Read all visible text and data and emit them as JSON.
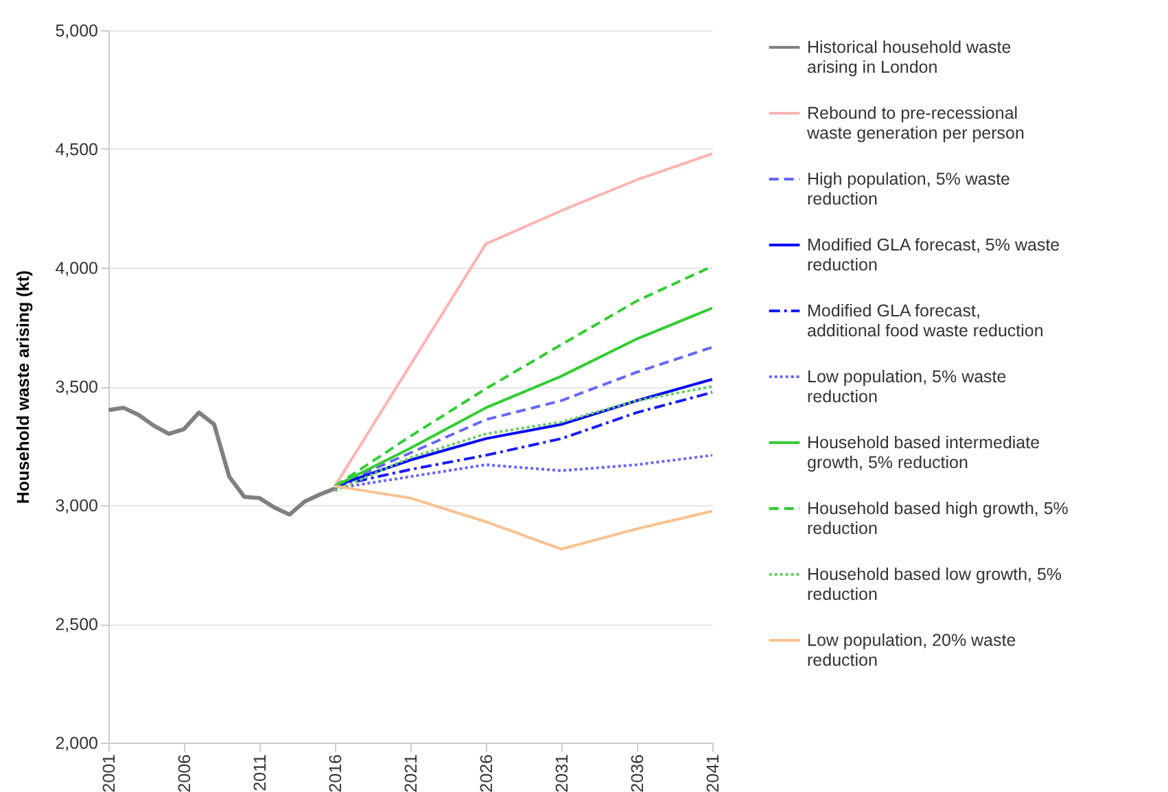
{
  "chart_data": {
    "type": "line",
    "ylabel": "Household waste arising (kt)",
    "xlim": [
      2001,
      2041
    ],
    "xticks": [
      2001,
      2006,
      2011,
      2016,
      2021,
      2026,
      2031,
      2036,
      2041
    ],
    "ylim": [
      2000,
      5000
    ],
    "yticks": [
      {
        "value": 2000,
        "label": "2,000"
      },
      {
        "value": 2500,
        "label": "2,500"
      },
      {
        "value": 3000,
        "label": "3,000"
      },
      {
        "value": 3500,
        "label": "3,500"
      },
      {
        "value": 4000,
        "label": "4,000"
      },
      {
        "value": 4500,
        "label": "4,500"
      },
      {
        "value": 5000,
        "label": "5,000"
      }
    ],
    "grid": "y",
    "legend": "right",
    "marker": "none",
    "series": [
      {
        "name": "Historical household waste arising in London",
        "color": "#808080",
        "line_style": "solid",
        "x": [
          2001,
          2002,
          2003,
          2004,
          2005,
          2006,
          2007,
          2008,
          2009,
          2010,
          2011,
          2012,
          2013,
          2014,
          2015,
          2016
        ],
        "values": [
          3400,
          3410,
          3380,
          3335,
          3300,
          3320,
          3390,
          3340,
          3120,
          3035,
          3030,
          2990,
          2960,
          3015,
          3045,
          3070
        ]
      },
      {
        "name": "Rebound to pre-recessional waste generation per person",
        "color": "#ffb3b3",
        "line_style": "solid",
        "x": [
          2016,
          2021,
          2026,
          2031,
          2036,
          2041
        ],
        "values": [
          3080,
          3590,
          4100,
          4240,
          4370,
          4480
        ]
      },
      {
        "name": "High population, 5% waste reduction",
        "color": "#6666ff",
        "line_style": "dashed",
        "x": [
          2016,
          2021,
          2026,
          2031,
          2036,
          2041
        ],
        "values": [
          3080,
          3220,
          3360,
          3440,
          3560,
          3665
        ]
      },
      {
        "name": "Modified GLA forecast, 5% waste reduction",
        "color": "#0000ff",
        "line_style": "solid",
        "x": [
          2016,
          2021,
          2026,
          2031,
          2036,
          2041
        ],
        "values": [
          3080,
          3190,
          3280,
          3340,
          3440,
          3530
        ]
      },
      {
        "name": "Modified GLA forecast, additional food waste reduction",
        "color": "#1a1aff",
        "line_style": "dashdot",
        "x": [
          2016,
          2021,
          2026,
          2031,
          2036,
          2041
        ],
        "values": [
          3080,
          3150,
          3210,
          3280,
          3390,
          3475
        ]
      },
      {
        "name": "Low population, 5% waste reduction",
        "color": "#6666ff",
        "line_style": "dotted",
        "x": [
          2016,
          2021,
          2026,
          2031,
          2036,
          2041
        ],
        "values": [
          3070,
          3120,
          3170,
          3145,
          3170,
          3210
        ]
      },
      {
        "name": "Household based intermediate growth, 5% reduction",
        "color": "#33cc33",
        "line_style": "solid",
        "x": [
          2016,
          2021,
          2026,
          2031,
          2036,
          2041
        ],
        "values": [
          3080,
          3240,
          3410,
          3543,
          3700,
          3830
        ]
      },
      {
        "name": "Household based high growth, 5% reduction",
        "color": "#33cc33",
        "line_style": "dashed",
        "x": [
          2016,
          2021,
          2026,
          2031,
          2036,
          2041
        ],
        "values": [
          3080,
          3290,
          3490,
          3676,
          3860,
          4006
        ]
      },
      {
        "name": "Household based low growth, 5% reduction",
        "color": "#66cc66",
        "line_style": "dotted",
        "x": [
          2016,
          2021,
          2026,
          2031,
          2036,
          2041
        ],
        "values": [
          3060,
          3200,
          3300,
          3350,
          3440,
          3500
        ]
      },
      {
        "name": "Low population, 20% waste reduction",
        "color": "#fbc08f",
        "line_style": "solid",
        "x": [
          2016,
          2021,
          2026,
          2031,
          2036,
          2041
        ],
        "values": [
          3080,
          3030,
          2930,
          2815,
          2900,
          2975
        ]
      }
    ]
  }
}
